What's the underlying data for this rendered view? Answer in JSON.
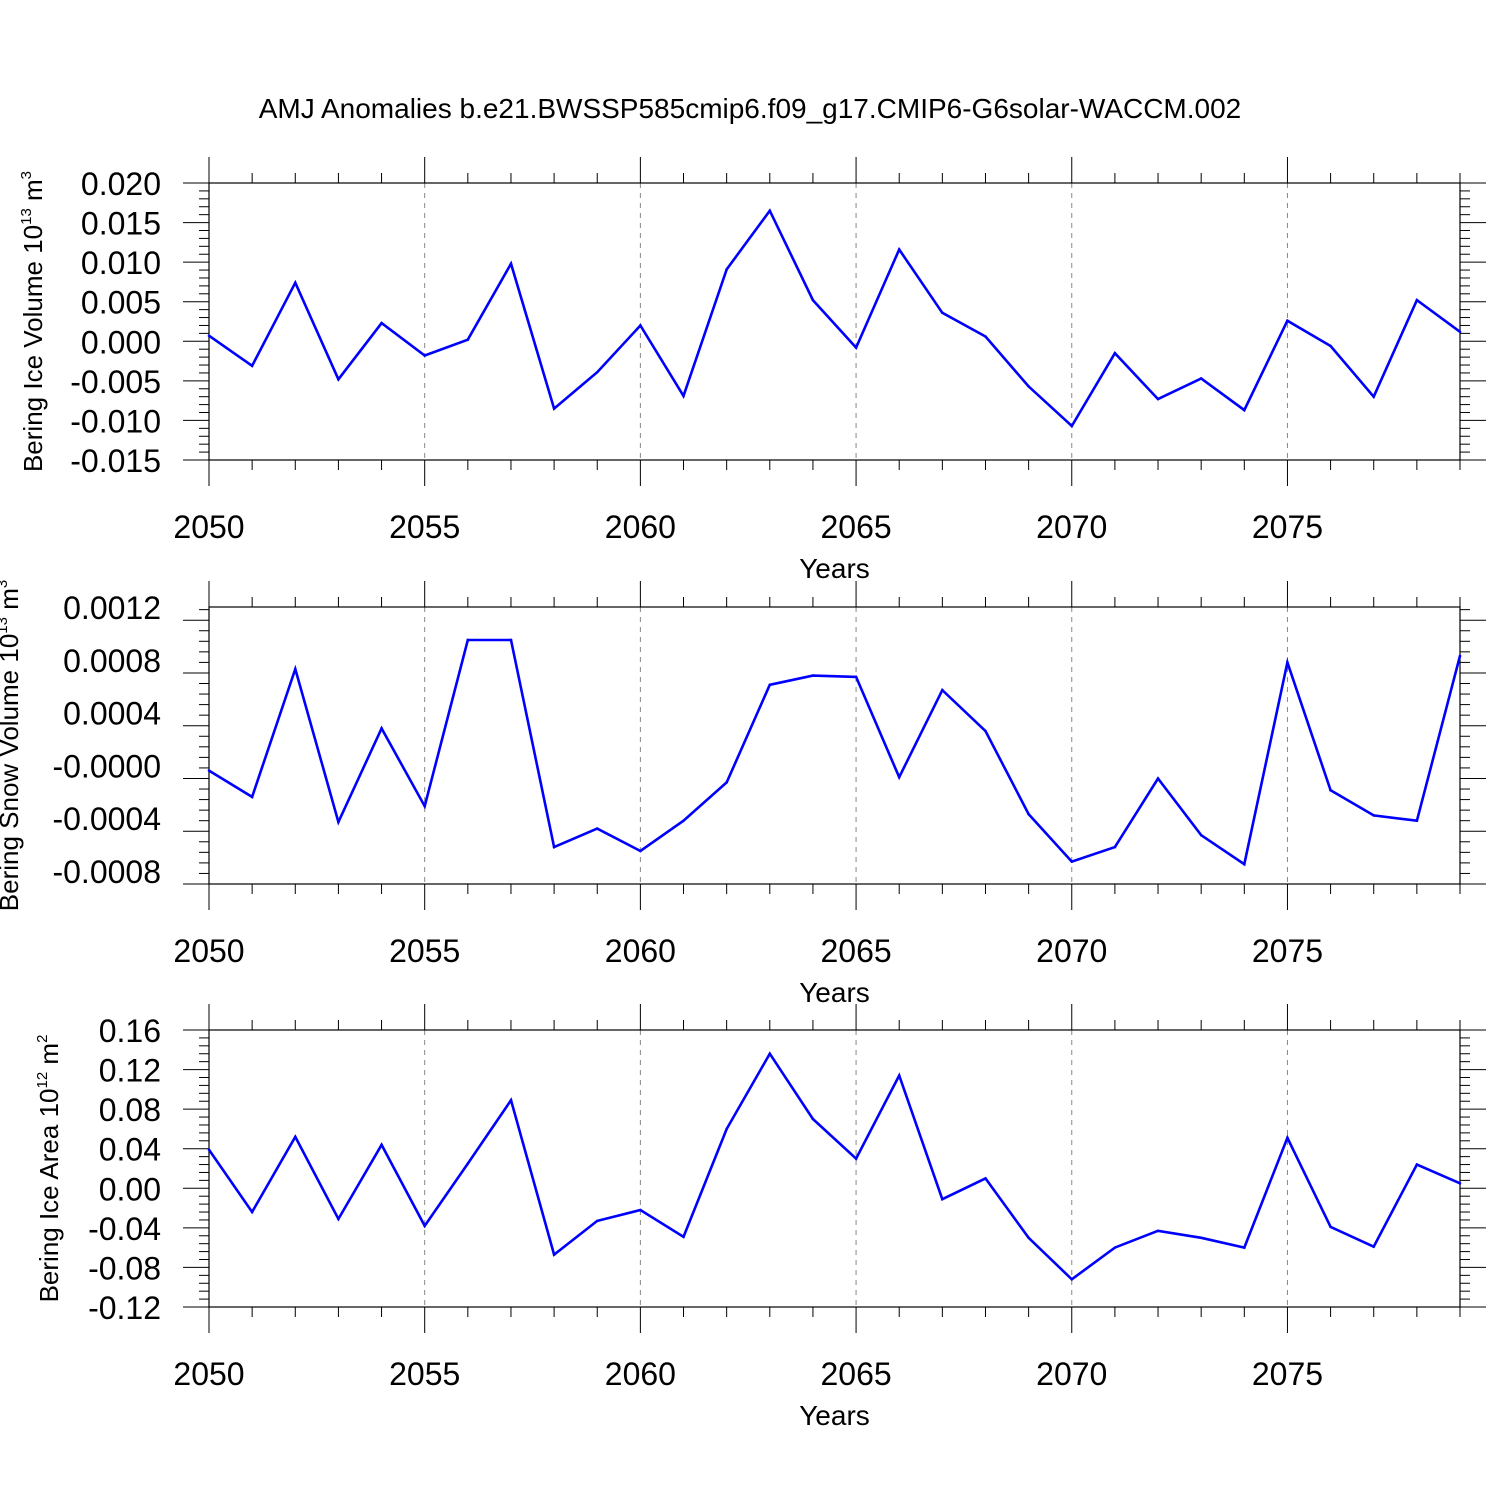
{
  "figure": {
    "title": "AMJ Anomalies b.e21.BWSSP585cmip6.f09_g17.CMIP6-G6solar-WACCM.002"
  },
  "colors": {
    "line": "#0000ff",
    "axis": "#000000",
    "gridline": "#888888",
    "background": "#ffffff"
  },
  "chart_data": [
    {
      "type": "line",
      "ylabel": {
        "prefix": "Bering Ice Volume 10",
        "exp": "13",
        "unit": " m",
        "unit_exp": "3"
      },
      "xlabel": "Years",
      "xlim": [
        2050,
        2079
      ],
      "ylim": [
        -0.015,
        0.02
      ],
      "x_ticks": [
        2050,
        2055,
        2060,
        2065,
        2070,
        2075
      ],
      "x_tick_labels": [
        "2050",
        "2055",
        "2060",
        "2065",
        "2070",
        "2075"
      ],
      "y_ticks": [
        -0.015,
        -0.01,
        -0.005,
        0.0,
        0.005,
        0.01,
        0.015,
        0.02
      ],
      "y_tick_labels": [
        "-0.015",
        "-0.010",
        "-0.005",
        "0.000",
        "0.005",
        "0.010",
        "0.015",
        "0.020"
      ],
      "grid": "vertical dashed at labeled x ticks",
      "x": [
        2050,
        2051,
        2052,
        2053,
        2054,
        2055,
        2056,
        2057,
        2058,
        2059,
        2060,
        2061,
        2062,
        2063,
        2064,
        2065,
        2066,
        2067,
        2068,
        2069,
        2070,
        2071,
        2072,
        2073,
        2074,
        2075,
        2076,
        2077,
        2078,
        2079
      ],
      "values": [
        0.0007,
        -0.0031,
        0.0074,
        -0.0048,
        0.0023,
        -0.0018,
        0.0002,
        0.0098,
        -0.0085,
        -0.0039,
        0.002,
        -0.0069,
        0.0091,
        0.0165,
        0.0052,
        -0.0008,
        0.0116,
        0.0036,
        0.0006,
        -0.0057,
        -0.0107,
        -0.0015,
        -0.0073,
        -0.0047,
        -0.0087,
        0.0026,
        -0.0006,
        -0.007,
        0.0052,
        0.0012
      ]
    },
    {
      "type": "line",
      "ylabel": {
        "prefix": "Bering Snow Volume 10",
        "exp": "13",
        "unit": " m",
        "unit_exp": "3"
      },
      "xlabel": "Years",
      "xlim": [
        2050,
        2079
      ],
      "ylim": [
        -0.0009,
        0.0012
      ],
      "x_ticks": [
        2050,
        2055,
        2060,
        2065,
        2070,
        2075
      ],
      "x_tick_labels": [
        "2050",
        "2055",
        "2060",
        "2065",
        "2070",
        "2075"
      ],
      "y_ticks": [
        -0.0008,
        -0.0004,
        0.0,
        0.0004,
        0.0008,
        0.0012
      ],
      "y_tick_labels": [
        "-0.0008",
        "-0.0004",
        "-0.0000",
        "0.0004",
        "0.0008",
        "0.0012"
      ],
      "grid": "vertical dashed at labeled x ticks",
      "x": [
        2050,
        2051,
        2052,
        2053,
        2054,
        2055,
        2056,
        2057,
        2058,
        2059,
        2060,
        2061,
        2062,
        2063,
        2064,
        2065,
        2066,
        2067,
        2068,
        2069,
        2070,
        2071,
        2072,
        2073,
        2074,
        2075,
        2076,
        2077,
        2078,
        2079
      ],
      "values": [
        -4e-05,
        -0.00024,
        0.00073,
        -0.00043,
        0.00028,
        -0.00031,
        0.00095,
        0.00095,
        -0.00062,
        -0.00048,
        -0.00065,
        -0.00042,
        -0.00013,
        0.00061,
        0.00068,
        0.00067,
        -9e-05,
        0.00057,
        0.00026,
        -0.00037,
        -0.00073,
        -0.00062,
        -0.0001,
        -0.00053,
        -0.00075,
        0.00078,
        -0.00019,
        -0.00038,
        -0.00042,
        0.00083
      ]
    },
    {
      "type": "line",
      "ylabel": {
        "prefix": "Bering Ice Area 10",
        "exp": "12",
        "unit": " m",
        "unit_exp": "2"
      },
      "xlabel": "Years",
      "xlim": [
        2050,
        2079
      ],
      "ylim": [
        -0.12,
        0.16
      ],
      "x_ticks": [
        2050,
        2055,
        2060,
        2065,
        2070,
        2075
      ],
      "x_tick_labels": [
        "2050",
        "2055",
        "2060",
        "2065",
        "2070",
        "2075"
      ],
      "y_ticks": [
        -0.12,
        -0.08,
        -0.04,
        0.0,
        0.04,
        0.08,
        0.12,
        0.16
      ],
      "y_tick_labels": [
        "-0.12",
        "-0.08",
        "-0.04",
        "0.00",
        "0.04",
        "0.08",
        "0.12",
        "0.16"
      ],
      "grid": "vertical dashed at labeled x ticks",
      "x": [
        2050,
        2051,
        2052,
        2053,
        2054,
        2055,
        2056,
        2057,
        2058,
        2059,
        2060,
        2061,
        2062,
        2063,
        2064,
        2065,
        2066,
        2067,
        2068,
        2069,
        2070,
        2071,
        2072,
        2073,
        2074,
        2075,
        2076,
        2077,
        2078,
        2079
      ],
      "values": [
        0.039,
        -0.024,
        0.052,
        -0.031,
        0.044,
        -0.038,
        0.025,
        0.089,
        -0.067,
        -0.033,
        -0.022,
        -0.049,
        0.06,
        0.136,
        0.07,
        0.03,
        0.114,
        -0.011,
        0.01,
        -0.05,
        -0.092,
        -0.06,
        -0.043,
        -0.05,
        -0.06,
        0.051,
        -0.039,
        -0.059,
        0.024,
        0.005
      ]
    }
  ]
}
